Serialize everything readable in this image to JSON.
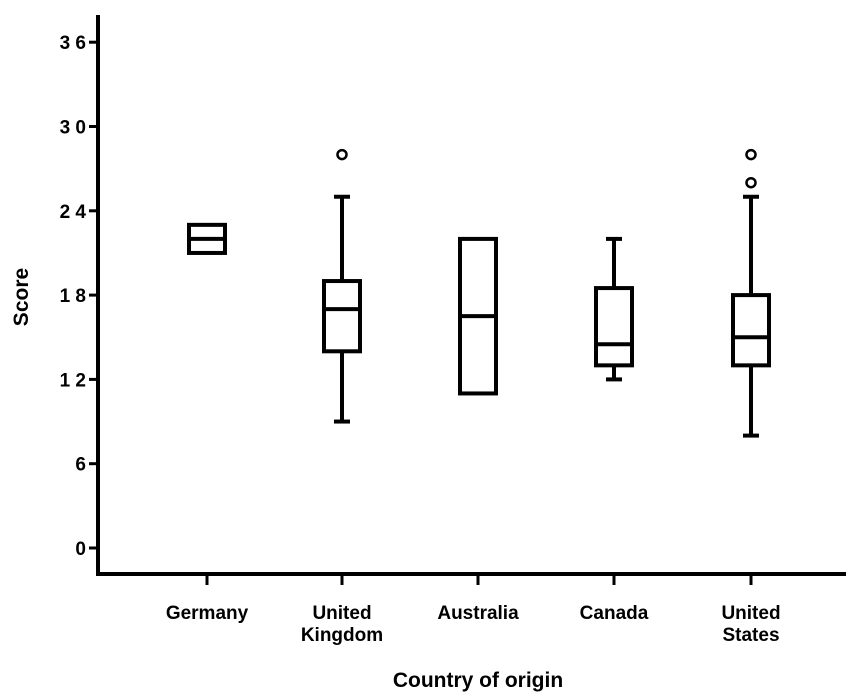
{
  "chart_data": {
    "type": "boxplot",
    "title": "",
    "xlabel": "Country of origin",
    "ylabel": "Score",
    "ylim": [
      0,
      37
    ],
    "yticks": [
      {
        "value": 0,
        "label": "0"
      },
      {
        "value": 6,
        "label": "6"
      },
      {
        "value": 12,
        "label": "1 2"
      },
      {
        "value": 18,
        "label": "1 8"
      },
      {
        "value": 24,
        "label": "2 4"
      },
      {
        "value": 30,
        "label": "3 0"
      },
      {
        "value": 36,
        "label": "3 6"
      }
    ],
    "grid": false,
    "categories": [
      {
        "label_lines": [
          "Germany"
        ],
        "whisker_low": null,
        "q1": 21,
        "median": 22,
        "q3": 23,
        "whisker_high": null,
        "outliers": []
      },
      {
        "label_lines": [
          "United",
          "Kingdom"
        ],
        "whisker_low": 9,
        "q1": 14,
        "median": 17,
        "q3": 19,
        "whisker_high": 25,
        "outliers": [
          28
        ]
      },
      {
        "label_lines": [
          "Australia"
        ],
        "whisker_low": null,
        "q1": 11,
        "median": 16.5,
        "q3": 22,
        "whisker_high": null,
        "outliers": []
      },
      {
        "label_lines": [
          "Canada"
        ],
        "whisker_low": 12,
        "q1": 13,
        "median": 14.5,
        "q3": 18.5,
        "whisker_high": 22,
        "outliers": []
      },
      {
        "label_lines": [
          "United",
          "States"
        ],
        "whisker_low": 8,
        "q1": 13,
        "median": 15,
        "q3": 18,
        "whisker_high": 25,
        "outliers": [
          26,
          28
        ]
      }
    ]
  }
}
